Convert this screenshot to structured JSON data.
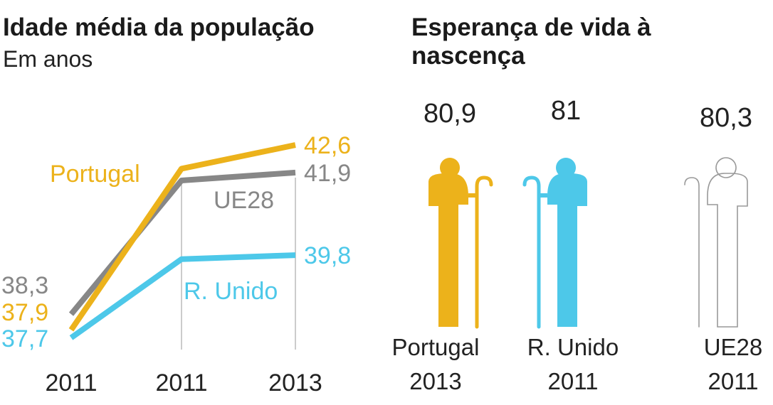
{
  "chart_data": [
    {
      "type": "line",
      "title": "Idade média da população",
      "subtitle": "Em anos",
      "categories": [
        "2011",
        "2011",
        "2013"
      ],
      "ylim": [
        37.4,
        43.0
      ],
      "grid": true,
      "series": [
        {
          "name": "Portugal",
          "values": [
            37.9,
            42.0,
            42.6
          ],
          "start_label": "37,9",
          "end_label": "42,6",
          "color": "#ecb21b"
        },
        {
          "name": "UE28",
          "values": [
            38.3,
            41.7,
            41.9
          ],
          "start_label": "38,3",
          "end_label": "41,9",
          "color": "#878787"
        },
        {
          "name": "R. Unido",
          "values": [
            37.7,
            39.7,
            39.8
          ],
          "start_label": "37,7",
          "end_label": "39,8",
          "color": "#4dc8e9"
        }
      ]
    },
    {
      "type": "pictogram",
      "title": "Esperança de vida à nascença",
      "items": [
        {
          "country": "Portugal",
          "year": "2013",
          "value": 80.9,
          "label": "80,9",
          "color": "#ecb21b",
          "style": "filled",
          "facing": "right"
        },
        {
          "country": "R. Unido",
          "year": "2011",
          "value": 81,
          "label": "81",
          "color": "#4dc8e9",
          "style": "filled",
          "facing": "left"
        },
        {
          "country": "UE28",
          "year": "2011",
          "value": 80.3,
          "label": "80,3",
          "color": "#999999",
          "style": "outline",
          "facing": "left"
        }
      ]
    }
  ]
}
